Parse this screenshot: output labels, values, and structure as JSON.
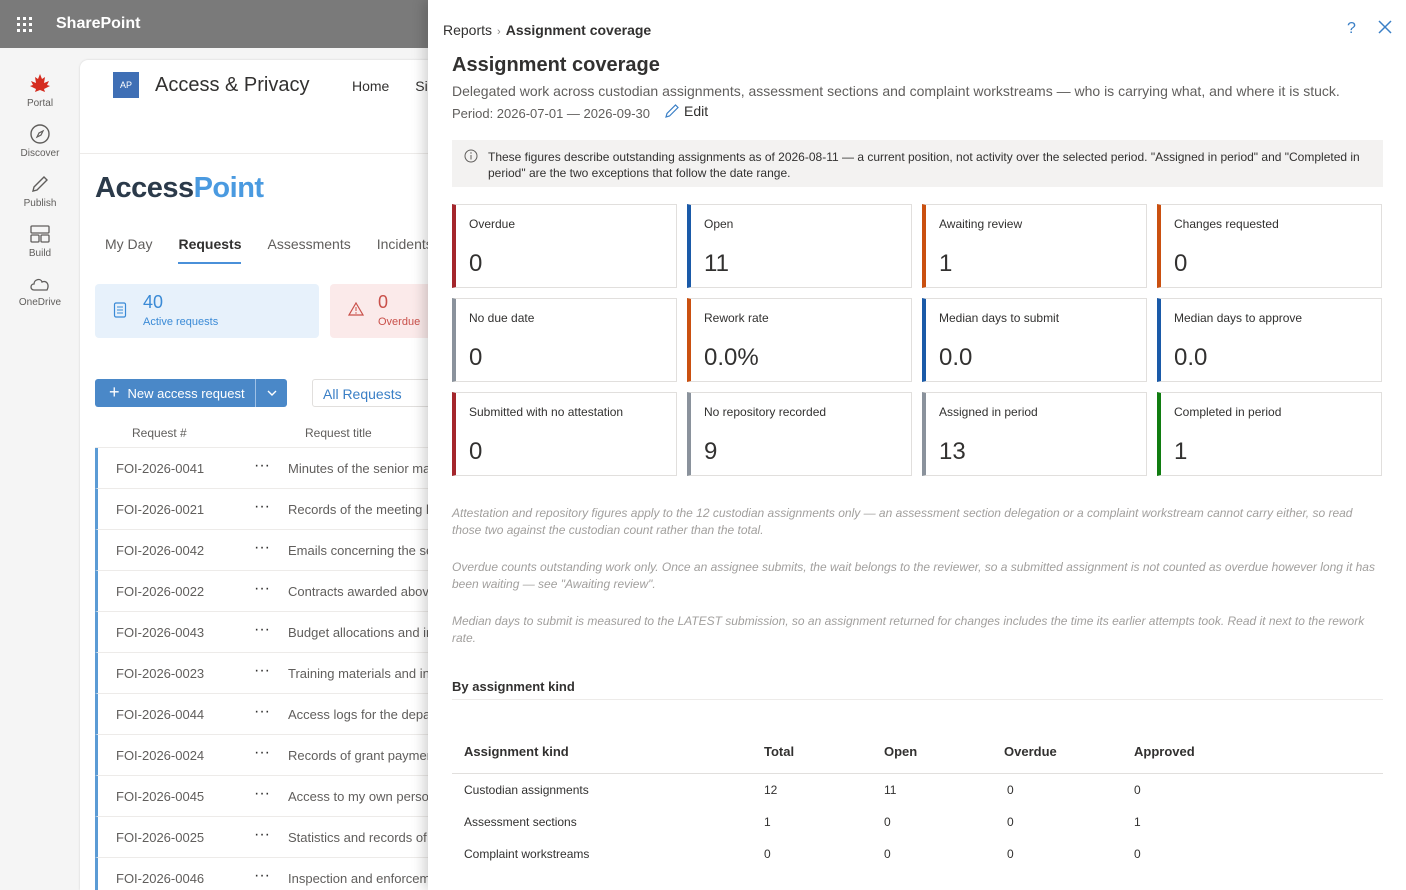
{
  "suite": {
    "brand": "SharePoint"
  },
  "rail": [
    {
      "label": "Portal",
      "icon": "maple-leaf-icon"
    },
    {
      "label": "Discover",
      "icon": "compass-icon"
    },
    {
      "label": "Publish",
      "icon": "pen-icon"
    },
    {
      "label": "Build",
      "icon": "build-icon"
    },
    {
      "label": "OneDrive",
      "icon": "cloud-icon"
    }
  ],
  "site": {
    "logo_initials": "AP",
    "title": "Access & Privacy",
    "nav": [
      "Home",
      "Si"
    ],
    "app_name_part1": "Access",
    "app_name_part2": "Point",
    "tabs": [
      "My Day",
      "Requests",
      "Assessments",
      "Incidents"
    ],
    "active_tab": "Requests",
    "kpis": [
      {
        "value": "40",
        "label": "Active requests"
      },
      {
        "value": "0",
        "label": "Overdue"
      }
    ],
    "new_button": "New access request",
    "view_selector": "All Requests",
    "columns": [
      "Request #",
      "Request title"
    ],
    "rows": [
      {
        "id": "FOI-2026-0041",
        "title": "Minutes of the senior ma"
      },
      {
        "id": "FOI-2026-0021",
        "title": "Records of the meeting b"
      },
      {
        "id": "FOI-2026-0042",
        "title": "Emails concerning the se"
      },
      {
        "id": "FOI-2026-0022",
        "title": "Contracts awarded abov"
      },
      {
        "id": "FOI-2026-0043",
        "title": "Budget allocations and ir"
      },
      {
        "id": "FOI-2026-0023",
        "title": "Training materials and in"
      },
      {
        "id": "FOI-2026-0044",
        "title": "Access logs for the depa"
      },
      {
        "id": "FOI-2026-0024",
        "title": "Records of grant paymer"
      },
      {
        "id": "FOI-2026-0045",
        "title": "Access to my own persor"
      },
      {
        "id": "FOI-2026-0025",
        "title": "Statistics and records of"
      },
      {
        "id": "FOI-2026-0046",
        "title": "Inspection and enforcem"
      }
    ]
  },
  "panel": {
    "breadcrumb_parent": "Reports",
    "breadcrumb_current": "Assignment coverage",
    "title": "Assignment coverage",
    "description": "Delegated work across custodian assignments, assessment sections and complaint workstreams — who is carrying what, and where it is stuck.",
    "period": "Period: 2026-07-01 — 2026-09-30",
    "edit_label": "Edit",
    "note": "These figures describe outstanding assignments as of 2026-08-11 — a current position, not activity over the selected period. \"Assigned in period\" and \"Completed in period\" are the two exceptions that follow the date range.",
    "metrics": [
      {
        "label": "Overdue",
        "value": "0",
        "accent": "red"
      },
      {
        "label": "Open",
        "value": "11",
        "accent": "blue"
      },
      {
        "label": "Awaiting review",
        "value": "1",
        "accent": "orange"
      },
      {
        "label": "Changes requested",
        "value": "0",
        "accent": "orange"
      },
      {
        "label": "No due date",
        "value": "0",
        "accent": "gray"
      },
      {
        "label": "Rework rate",
        "value": "0.0%",
        "accent": "orange"
      },
      {
        "label": "Median days to submit",
        "value": "0.0",
        "accent": "blue"
      },
      {
        "label": "Median days to approve",
        "value": "0.0",
        "accent": "blue"
      },
      {
        "label": "Submitted with no attestation",
        "value": "0",
        "accent": "red"
      },
      {
        "label": "No repository recorded",
        "value": "9",
        "accent": "gray"
      },
      {
        "label": "Assigned in period",
        "value": "13",
        "accent": "gray"
      },
      {
        "label": "Completed in period",
        "value": "1",
        "accent": "green"
      }
    ],
    "footnotes": [
      "Attestation and repository figures apply to the 12 custodian assignments only — an assessment section delegation or a complaint workstream cannot carry either, so read those two against the custodian count rather than the total.",
      "Overdue counts outstanding work only. Once an assignee submits, the wait belongs to the reviewer, so a submitted assignment is not counted as overdue however long it has been waiting — see \"Awaiting review\".",
      "Median days to submit is measured to the LATEST submission, so an assignment returned for changes includes the time its earlier attempts took. Read it next to the rework rate."
    ],
    "section_title": "By assignment kind",
    "table": {
      "columns": [
        "Assignment kind",
        "Total",
        "Open",
        "Overdue",
        "Approved"
      ],
      "rows": [
        [
          "Custodian assignments",
          "12",
          "11",
          "0",
          "0"
        ],
        [
          "Assessment sections",
          "1",
          "0",
          "0",
          "1"
        ],
        [
          "Complaint workstreams",
          "0",
          "0",
          "0",
          "0"
        ]
      ]
    }
  },
  "colors": {
    "red": "#a4262c",
    "blue": "#1a5aa8",
    "orange": "#ca5010",
    "gray": "#8a929c",
    "green": "#107c10",
    "link": "#3a7fc6"
  }
}
